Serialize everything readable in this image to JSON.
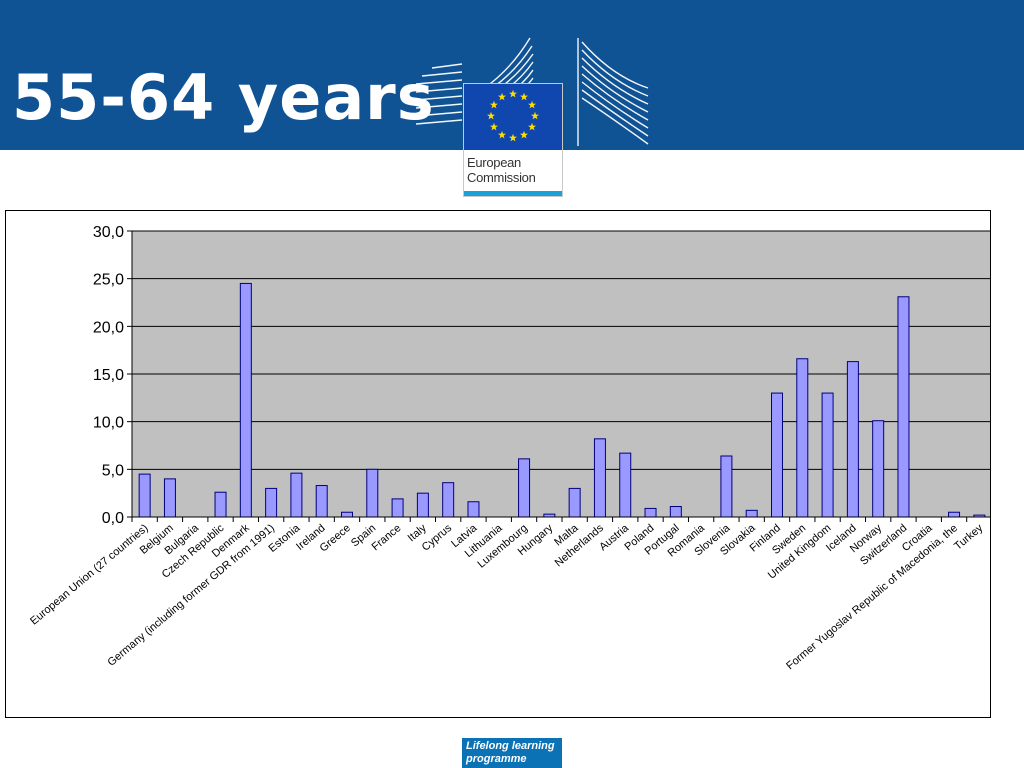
{
  "slide": {
    "title": "55-64 years"
  },
  "logo": {
    "org_name": "European\nCommission",
    "flag_colors": {
      "background": "#0f47af",
      "stars": "#ffdd00"
    },
    "icon": "eu-flag-icon"
  },
  "footer": {
    "label": "Lifelong learning\nprogramme"
  },
  "colors": {
    "header_band": "#0f5394",
    "plot_background": "#c0c0c0",
    "bar_fill": "#9999ff",
    "bar_stroke": "#000080"
  },
  "chart_data": {
    "type": "bar",
    "title": "",
    "xlabel": "",
    "ylabel": "",
    "ylim": [
      0,
      30
    ],
    "yticks": [
      "0,0",
      "5,0",
      "10,0",
      "15,0",
      "20,0",
      "25,0",
      "30,0"
    ],
    "ytick_values": [
      0,
      5,
      10,
      15,
      20,
      25,
      30
    ],
    "grid": true,
    "legend": "none",
    "categories": [
      "European Union (27 countries)",
      "Belgium",
      "Bulgaria",
      "Czech Republic",
      "Denmark",
      "Germany (including  former GDR from 1991)",
      "Estonia",
      "Ireland",
      "Greece",
      "Spain",
      "France",
      "Italy",
      "Cyprus",
      "Latvia",
      "Lithuania",
      "Luxembourg",
      "Hungary",
      "Malta",
      "Netherlands",
      "Austria",
      "Poland",
      "Portugal",
      "Romania",
      "Slovenia",
      "Slovakia",
      "Finland",
      "Sweden",
      "United Kingdom",
      "Iceland",
      "Norway",
      "Switzerland",
      "Croatia",
      "Former Yugoslav Republic of Macedonia, the",
      "Turkey"
    ],
    "values": [
      4.5,
      4.0,
      null,
      2.6,
      24.5,
      3.0,
      4.6,
      3.3,
      0.5,
      5.0,
      1.9,
      2.5,
      3.6,
      1.6,
      null,
      6.1,
      0.3,
      3.0,
      8.2,
      6.7,
      0.9,
      1.1,
      null,
      6.4,
      0.7,
      13.0,
      16.6,
      13.0,
      16.3,
      10.1,
      23.1,
      null,
      0.5,
      0.2
    ]
  }
}
